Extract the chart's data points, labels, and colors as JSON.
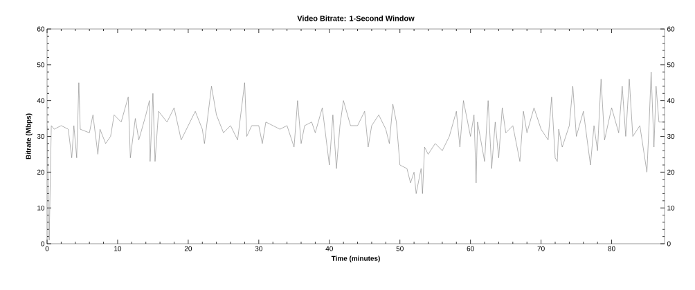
{
  "chart_data": {
    "type": "line",
    "title": "Video Bitrate: 1-Second Window",
    "xlabel": "Time (minutes)",
    "ylabel": "Bitrate (Mbps)",
    "xlim": [
      0,
      87.5
    ],
    "xticks": [
      0,
      10,
      20,
      30,
      40,
      50,
      60,
      70,
      80
    ],
    "ylim": [
      0,
      60
    ],
    "yticks": [
      0,
      10,
      20,
      30,
      40,
      50,
      60
    ],
    "y2lim": [
      0,
      60
    ],
    "y2ticks": [
      0,
      10,
      20,
      30,
      40,
      50,
      60
    ],
    "grid": false,
    "series": [
      {
        "color": "#7f7f7f",
        "x": [
          0,
          0.3,
          0.6,
          1,
          2,
          3,
          3.5,
          3.8,
          4.2,
          4.5,
          4.7,
          6,
          6.5,
          7.2,
          7.5,
          8.3,
          9,
          9.5,
          10.5,
          11.5,
          11.8,
          12.5,
          13,
          14,
          14.5,
          14.6,
          15,
          15.3,
          15.8,
          17,
          18,
          19,
          20,
          21,
          22,
          22.3,
          23.3,
          24,
          25,
          26,
          27,
          28,
          28.3,
          29,
          30,
          30.5,
          31,
          32,
          33,
          34,
          35,
          35.5,
          36,
          36.5,
          37.5,
          38,
          39,
          40,
          40.5,
          41,
          41.5,
          42,
          43,
          44,
          45,
          45.5,
          46,
          47,
          48,
          48.5,
          49,
          49.5,
          49.8,
          50,
          51,
          51.5,
          52,
          52.3,
          53,
          53.2,
          53.5,
          54,
          55,
          56,
          57,
          58,
          58.5,
          59,
          60,
          60.5,
          60.8,
          61,
          62,
          62.5,
          63,
          63.5,
          64,
          64.5,
          65,
          66,
          67,
          67.5,
          68,
          69,
          70,
          71,
          71.5,
          72,
          72.3,
          72.5,
          73,
          74,
          74.5,
          75,
          76,
          77,
          77.5,
          78,
          78.5,
          79,
          80,
          81,
          81.5,
          82,
          82.5,
          83,
          84,
          85,
          85.3,
          85.6,
          86,
          86.3,
          86.7,
          87.5
        ],
        "values": [
          33,
          1,
          33,
          32,
          33,
          32,
          24,
          33,
          24,
          45,
          32,
          31,
          36,
          25,
          32,
          28,
          30,
          36,
          34,
          41,
          24,
          35,
          29,
          36,
          40,
          23,
          42,
          23,
          37,
          34,
          38,
          29,
          33,
          37,
          32,
          28,
          44,
          36,
          31,
          33,
          29,
          45,
          30,
          33,
          33,
          28,
          34,
          33,
          32,
          33,
          27,
          40,
          28,
          33,
          34,
          31,
          38,
          22,
          36,
          21,
          33,
          40,
          33,
          33,
          37,
          27,
          33,
          36,
          32,
          28,
          39,
          34,
          27,
          22,
          21,
          17,
          20,
          14,
          21,
          14,
          27,
          25,
          28,
          26,
          30,
          37,
          27,
          40,
          30,
          36,
          17,
          34,
          23,
          40,
          21,
          34,
          24,
          38,
          31,
          33,
          23,
          37,
          31,
          38,
          32,
          29,
          41,
          24,
          23,
          32,
          27,
          33,
          44,
          30,
          37,
          22,
          33,
          26,
          46,
          29,
          38,
          31,
          44,
          30,
          46,
          30,
          33,
          20,
          33,
          48,
          27,
          44,
          34,
          34
        ]
      }
    ]
  }
}
